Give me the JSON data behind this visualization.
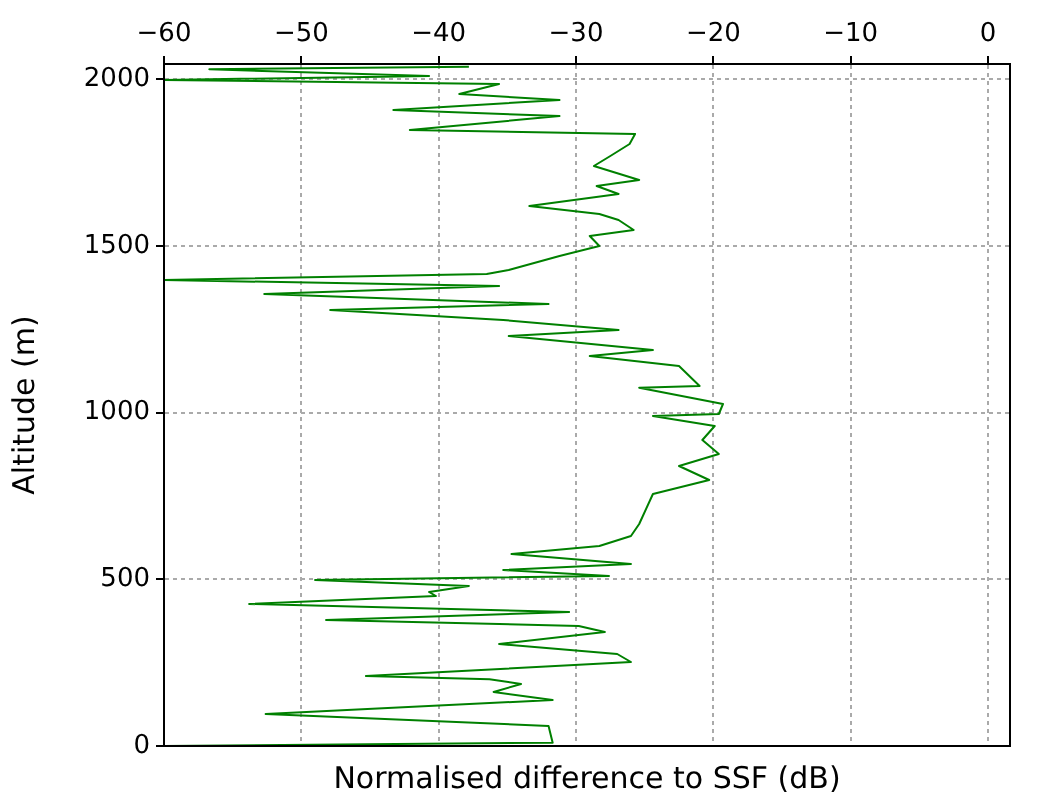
{
  "chart_data": {
    "type": "line",
    "xlabel": "Normalised difference to SSF (dB)",
    "ylabel": "Altitude (m)",
    "xlim": [
      -60,
      1.6
    ],
    "xticks": [
      -60,
      -50,
      -40,
      -30,
      -20,
      -10,
      0
    ],
    "ylim": [
      0,
      2046
    ],
    "yticks": [
      0,
      500,
      1000,
      1500,
      2000
    ],
    "grid": true,
    "legend": false,
    "marker": "none",
    "line_style": "solid",
    "series": [
      {
        "color": "#008000",
        "x": [
          -60,
          -31.7,
          -32,
          -52.6,
          -31.7,
          -36,
          -34,
          -36.3,
          -45.3,
          -26,
          -27,
          -35.6,
          -27.9,
          -29.8,
          -48.2,
          -30.5,
          -53.8,
          -40.2,
          -40.7,
          -37.8,
          -49,
          -27.6,
          -35.3,
          -26,
          -34.7,
          -28.3,
          -26,
          -25.4,
          -24.4,
          -20.3,
          -22.5,
          -19.6,
          -20.8,
          -19.9,
          -24.4,
          -19.6,
          -19.3,
          -25.4,
          -21,
          -22.5,
          -29,
          -24.4,
          -34.9,
          -26.9,
          -35.3,
          -47.9,
          -32,
          -52.7,
          -35.6,
          -60,
          -36.5,
          -34.9,
          -31.2,
          -28.3,
          -29,
          -25.8,
          -26.9,
          -28.3,
          -33.4,
          -26.9,
          -28.5,
          -25.4,
          -28.7,
          -27.5,
          -26.1,
          -25.7,
          -42.1,
          -31.2,
          -43.3,
          -31.2,
          -38.5,
          -35.6,
          -60,
          -40.7,
          -56.7,
          -37.8
        ],
        "values": [
          0,
          10,
          60,
          96,
          138,
          162,
          186,
          200,
          210,
          252,
          276,
          306,
          342,
          360,
          378,
          402,
          426,
          450,
          462,
          480,
          498,
          510,
          528,
          546,
          576,
          600,
          630,
          666,
          756,
          798,
          840,
          876,
          918,
          960,
          990,
          996,
          1026,
          1075,
          1080,
          1140,
          1170,
          1188,
          1230,
          1248,
          1278,
          1308,
          1326,
          1356,
          1380,
          1398,
          1416,
          1428,
          1470,
          1500,
          1530,
          1548,
          1578,
          1596,
          1620,
          1656,
          1680,
          1698,
          1740,
          1770,
          1806,
          1836,
          1848,
          1890,
          1908,
          1938,
          1956,
          1986,
          1998,
          2010,
          2030,
          2038
        ]
      }
    ]
  }
}
